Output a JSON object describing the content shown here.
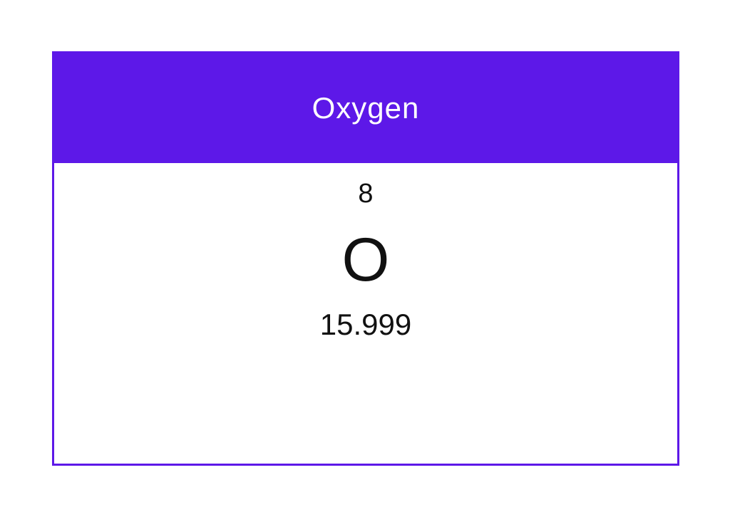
{
  "element": {
    "name": "Oxygen",
    "atomic_number": "8",
    "symbol": "O",
    "atomic_mass": "15.999"
  },
  "colors": {
    "header_background": "#5d18e8",
    "border": "#5d18e8",
    "header_text": "#ffffff",
    "body_text": "#111111",
    "page_background": "#ffffff"
  }
}
